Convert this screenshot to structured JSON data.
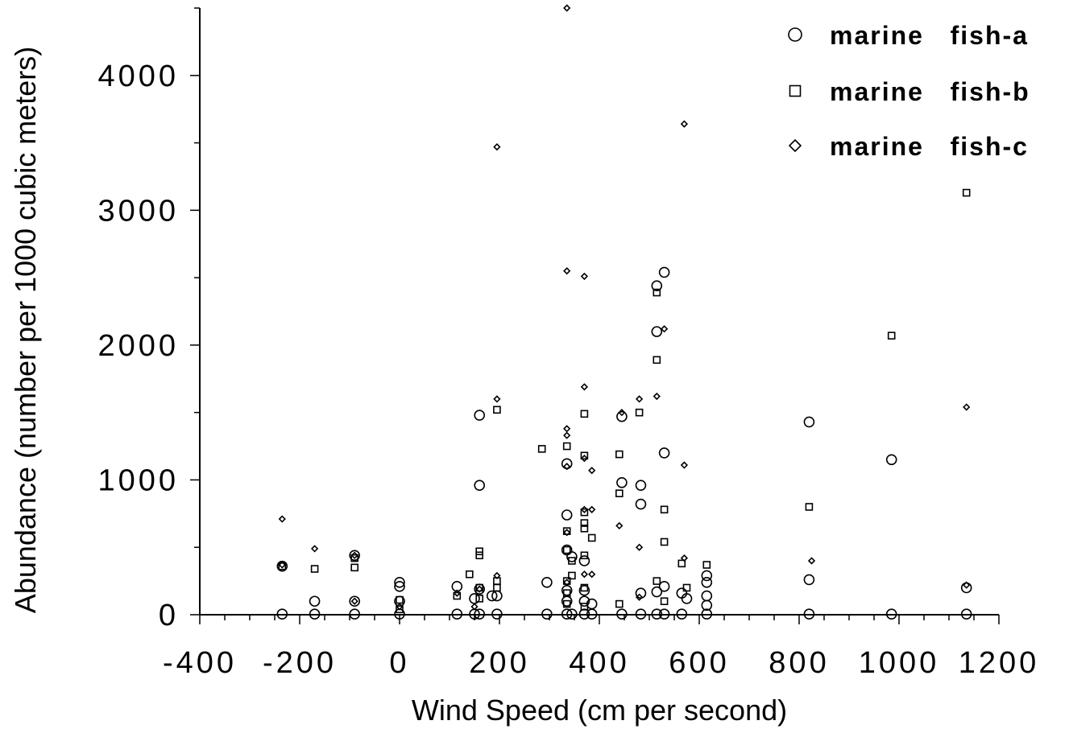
{
  "chart_data": {
    "type": "scatter",
    "xlabel": "Wind Speed (cm per second)",
    "ylabel": "Abundance (number per 1000 cubic meters)",
    "xlim": [
      -400,
      1200
    ],
    "ylim": [
      0,
      4500
    ],
    "x_ticks": [
      "-400",
      "-200",
      "0",
      "200",
      "400",
      "600",
      "800",
      "1000",
      "1200"
    ],
    "y_ticks": [
      "0",
      "1000",
      "2000",
      "3000",
      "4000"
    ],
    "grid": false,
    "legend_position": "top-right",
    "series": [
      {
        "name": "marine   fish-a",
        "marker": "circle",
        "points": [
          [
            -235,
            360
          ],
          [
            -235,
            5
          ],
          [
            -170,
            100
          ],
          [
            -170,
            5
          ],
          [
            -90,
            440
          ],
          [
            -90,
            100
          ],
          [
            -90,
            5
          ],
          [
            0,
            240
          ],
          [
            0,
            210
          ],
          [
            0,
            100
          ],
          [
            0,
            5
          ],
          [
            115,
            210
          ],
          [
            115,
            5
          ],
          [
            150,
            120
          ],
          [
            150,
            5
          ],
          [
            160,
            1480
          ],
          [
            160,
            960
          ],
          [
            160,
            190
          ],
          [
            160,
            5
          ],
          [
            185,
            140
          ],
          [
            195,
            140
          ],
          [
            195,
            5
          ],
          [
            295,
            240
          ],
          [
            295,
            5
          ],
          [
            335,
            1120
          ],
          [
            335,
            740
          ],
          [
            335,
            480
          ],
          [
            335,
            180
          ],
          [
            335,
            100
          ],
          [
            335,
            5
          ],
          [
            345,
            430
          ],
          [
            345,
            5
          ],
          [
            370,
            400
          ],
          [
            370,
            180
          ],
          [
            370,
            100
          ],
          [
            370,
            5
          ],
          [
            385,
            80
          ],
          [
            385,
            5
          ],
          [
            445,
            1470
          ],
          [
            445,
            980
          ],
          [
            445,
            5
          ],
          [
            483,
            960
          ],
          [
            483,
            820
          ],
          [
            483,
            160
          ],
          [
            483,
            5
          ],
          [
            515,
            2440
          ],
          [
            515,
            2100
          ],
          [
            515,
            170
          ],
          [
            515,
            5
          ],
          [
            530,
            2540
          ],
          [
            530,
            1200
          ],
          [
            530,
            210
          ],
          [
            530,
            5
          ],
          [
            565,
            160
          ],
          [
            565,
            5
          ],
          [
            575,
            120
          ],
          [
            615,
            290
          ],
          [
            615,
            240
          ],
          [
            615,
            140
          ],
          [
            615,
            70
          ],
          [
            615,
            5
          ],
          [
            820,
            1430
          ],
          [
            820,
            260
          ],
          [
            820,
            5
          ],
          [
            985,
            1150
          ],
          [
            985,
            5
          ],
          [
            1135,
            200
          ],
          [
            1135,
            5
          ]
        ]
      },
      {
        "name": "marine   fish-b",
        "marker": "square",
        "points": [
          [
            -235,
            360
          ],
          [
            -170,
            340
          ],
          [
            -90,
            420
          ],
          [
            -90,
            350
          ],
          [
            0,
            110
          ],
          [
            0,
            40
          ],
          [
            115,
            140
          ],
          [
            140,
            300
          ],
          [
            160,
            470
          ],
          [
            160,
            440
          ],
          [
            160,
            200
          ],
          [
            160,
            120
          ],
          [
            195,
            1520
          ],
          [
            195,
            250
          ],
          [
            195,
            200
          ],
          [
            285,
            1230
          ],
          [
            335,
            1250
          ],
          [
            335,
            620
          ],
          [
            335,
            480
          ],
          [
            335,
            250
          ],
          [
            335,
            160
          ],
          [
            335,
            80
          ],
          [
            345,
            400
          ],
          [
            345,
            290
          ],
          [
            370,
            1490
          ],
          [
            370,
            1180
          ],
          [
            370,
            760
          ],
          [
            370,
            680
          ],
          [
            370,
            640
          ],
          [
            370,
            440
          ],
          [
            370,
            200
          ],
          [
            370,
            60
          ],
          [
            385,
            570
          ],
          [
            440,
            1190
          ],
          [
            440,
            900
          ],
          [
            440,
            80
          ],
          [
            480,
            1500
          ],
          [
            515,
            2390
          ],
          [
            515,
            1890
          ],
          [
            515,
            250
          ],
          [
            530,
            780
          ],
          [
            530,
            540
          ],
          [
            530,
            100
          ],
          [
            565,
            380
          ],
          [
            575,
            200
          ],
          [
            615,
            370
          ],
          [
            820,
            800
          ],
          [
            985,
            2070
          ],
          [
            1135,
            3130
          ]
        ]
      },
      {
        "name": "marine   fish-c",
        "marker": "diamond",
        "points": [
          [
            -235,
            710
          ],
          [
            -235,
            370
          ],
          [
            -170,
            490
          ],
          [
            -90,
            440
          ],
          [
            -90,
            100
          ],
          [
            0,
            60
          ],
          [
            115,
            160
          ],
          [
            150,
            60
          ],
          [
            160,
            190
          ],
          [
            195,
            3470
          ],
          [
            195,
            1600
          ],
          [
            195,
            290
          ],
          [
            335,
            4500
          ],
          [
            335,
            2550
          ],
          [
            335,
            1380
          ],
          [
            335,
            1330
          ],
          [
            335,
            1100
          ],
          [
            335,
            610
          ],
          [
            335,
            240
          ],
          [
            370,
            2510
          ],
          [
            370,
            1690
          ],
          [
            370,
            1160
          ],
          [
            370,
            780
          ],
          [
            370,
            300
          ],
          [
            385,
            1070
          ],
          [
            385,
            780
          ],
          [
            385,
            300
          ],
          [
            440,
            660
          ],
          [
            445,
            1500
          ],
          [
            480,
            1600
          ],
          [
            480,
            500
          ],
          [
            480,
            130
          ],
          [
            515,
            1620
          ],
          [
            530,
            2120
          ],
          [
            570,
            3640
          ],
          [
            570,
            1110
          ],
          [
            570,
            420
          ],
          [
            825,
            400
          ],
          [
            1135,
            1540
          ],
          [
            1135,
            220
          ]
        ]
      }
    ]
  }
}
